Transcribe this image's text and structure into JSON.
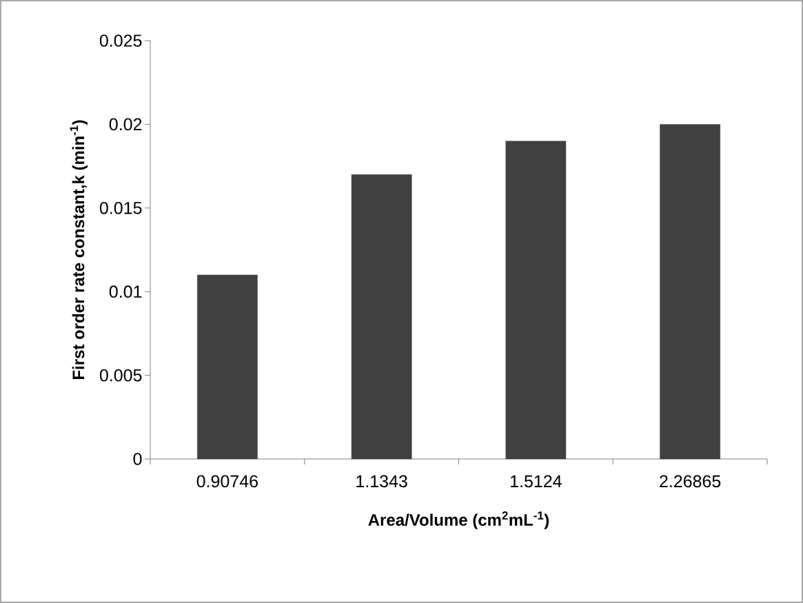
{
  "chart_data": {
    "type": "bar",
    "xlabel": "Area/Volume (cm$^{2}$mL$^{-1}$)",
    "ylabel": "First order rate constant,k  (min$^{-1}$)",
    "categories": [
      "0.90746",
      "1.1343",
      "1.5124",
      "2.26865"
    ],
    "values": [
      0.011,
      0.017,
      0.019,
      0.02
    ],
    "color": "#404040",
    "ylim": [
      0,
      0.025
    ],
    "yticks": [
      0,
      0.005,
      0.01,
      0.015,
      0.02,
      0.025
    ],
    "grid": false
  }
}
